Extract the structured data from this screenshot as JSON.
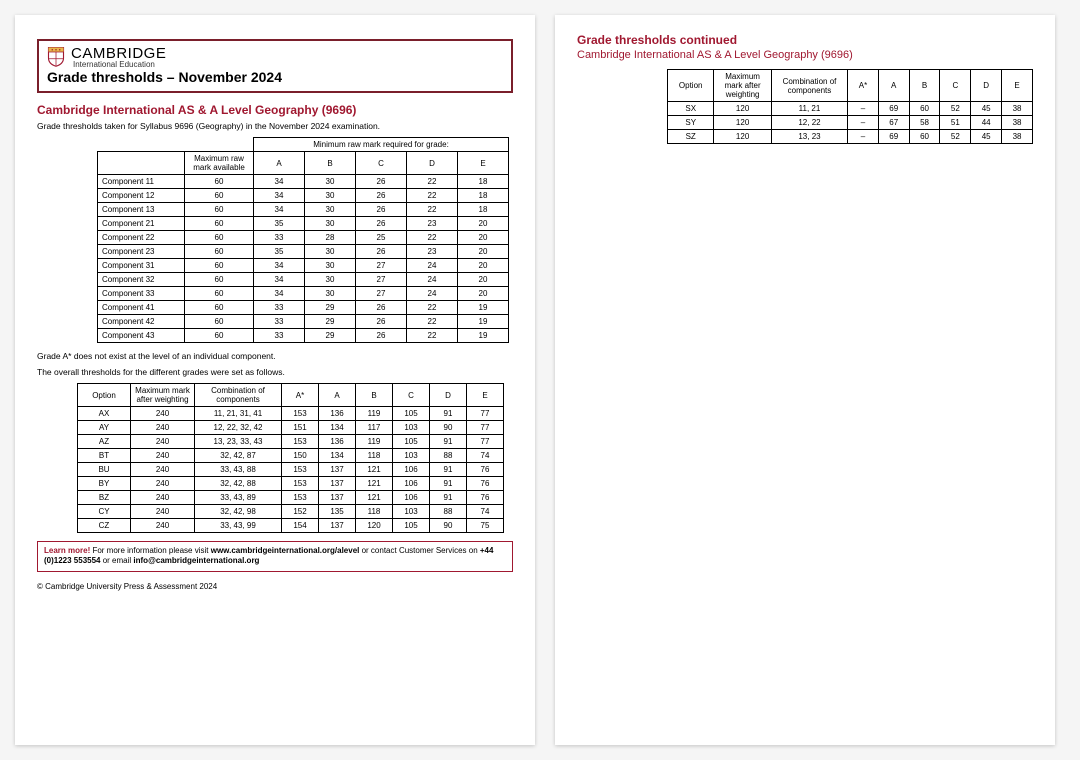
{
  "brand": {
    "name": "CAMBRIDGE",
    "subtitle": "International Education"
  },
  "doc_title": "Grade thresholds – November 2024",
  "syllabus_heading": "Cambridge International AS & A Level Geography (9696)",
  "intro": "Grade thresholds taken for Syllabus 9696 (Geography) in the November 2024 examination.",
  "table1": {
    "span_header": "Minimum raw mark required for grade:",
    "max_header": "Maximum raw mark available",
    "grades": [
      "A",
      "B",
      "C",
      "D",
      "E"
    ],
    "rows": [
      {
        "c": "Component 11",
        "m": "60",
        "v": [
          "34",
          "30",
          "26",
          "22",
          "18"
        ]
      },
      {
        "c": "Component 12",
        "m": "60",
        "v": [
          "34",
          "30",
          "26",
          "22",
          "18"
        ]
      },
      {
        "c": "Component 13",
        "m": "60",
        "v": [
          "34",
          "30",
          "26",
          "22",
          "18"
        ]
      },
      {
        "c": "Component 21",
        "m": "60",
        "v": [
          "35",
          "30",
          "26",
          "23",
          "20"
        ]
      },
      {
        "c": "Component 22",
        "m": "60",
        "v": [
          "33",
          "28",
          "25",
          "22",
          "20"
        ]
      },
      {
        "c": "Component 23",
        "m": "60",
        "v": [
          "35",
          "30",
          "26",
          "23",
          "20"
        ]
      },
      {
        "c": "Component 31",
        "m": "60",
        "v": [
          "34",
          "30",
          "27",
          "24",
          "20"
        ]
      },
      {
        "c": "Component 32",
        "m": "60",
        "v": [
          "34",
          "30",
          "27",
          "24",
          "20"
        ]
      },
      {
        "c": "Component 33",
        "m": "60",
        "v": [
          "34",
          "30",
          "27",
          "24",
          "20"
        ]
      },
      {
        "c": "Component 41",
        "m": "60",
        "v": [
          "33",
          "29",
          "26",
          "22",
          "19"
        ]
      },
      {
        "c": "Component 42",
        "m": "60",
        "v": [
          "33",
          "29",
          "26",
          "22",
          "19"
        ]
      },
      {
        "c": "Component 43",
        "m": "60",
        "v": [
          "33",
          "29",
          "26",
          "22",
          "19"
        ]
      }
    ]
  },
  "note1": "Grade A* does not exist at the level of an individual component.",
  "note2": "The overall thresholds for the different grades were set as follows.",
  "table2": {
    "headers": {
      "option": "Option",
      "max": "Maximum mark after weighting",
      "comb": "Combination of components",
      "grades": [
        "A*",
        "A",
        "B",
        "C",
        "D",
        "E"
      ]
    },
    "rows": [
      {
        "o": "AX",
        "m": "240",
        "c": "11, 21, 31, 41",
        "v": [
          "153",
          "136",
          "119",
          "105",
          "91",
          "77"
        ]
      },
      {
        "o": "AY",
        "m": "240",
        "c": "12, 22, 32, 42",
        "v": [
          "151",
          "134",
          "117",
          "103",
          "90",
          "77"
        ]
      },
      {
        "o": "AZ",
        "m": "240",
        "c": "13, 23, 33, 43",
        "v": [
          "153",
          "136",
          "119",
          "105",
          "91",
          "77"
        ]
      },
      {
        "o": "BT",
        "m": "240",
        "c": "32, 42, 87",
        "v": [
          "150",
          "134",
          "118",
          "103",
          "88",
          "74"
        ]
      },
      {
        "o": "BU",
        "m": "240",
        "c": "33, 43, 88",
        "v": [
          "153",
          "137",
          "121",
          "106",
          "91",
          "76"
        ]
      },
      {
        "o": "BY",
        "m": "240",
        "c": "32, 42, 88",
        "v": [
          "153",
          "137",
          "121",
          "106",
          "91",
          "76"
        ]
      },
      {
        "o": "BZ",
        "m": "240",
        "c": "33, 43, 89",
        "v": [
          "153",
          "137",
          "121",
          "106",
          "91",
          "76"
        ]
      },
      {
        "o": "CY",
        "m": "240",
        "c": "32, 42, 98",
        "v": [
          "152",
          "135",
          "118",
          "103",
          "88",
          "74"
        ]
      },
      {
        "o": "CZ",
        "m": "240",
        "c": "33, 43, 99",
        "v": [
          "154",
          "137",
          "120",
          "105",
          "90",
          "75"
        ]
      }
    ]
  },
  "learn": {
    "lead": "Learn more!",
    "text1": " For more information please visit ",
    "url": "www.cambridgeinternational.org/alevel",
    "text2": " or contact Customer Services on ",
    "phone": "+44 (0)1223 553554",
    "text3": " or email ",
    "email": "info@cambridgeinternational.org"
  },
  "copyright": "© Cambridge University Press & Assessment 2024",
  "page2": {
    "heading": "Grade thresholds continued",
    "sub": "Cambridge International AS & A Level Geography (9696)",
    "headers": {
      "option": "Option",
      "max": "Maximum mark after weighting",
      "comb": "Combination of components",
      "grades": [
        "A*",
        "A",
        "B",
        "C",
        "D",
        "E"
      ]
    },
    "rows": [
      {
        "o": "SX",
        "m": "120",
        "c": "11, 21",
        "v": [
          "–",
          "69",
          "60",
          "52",
          "45",
          "38"
        ]
      },
      {
        "o": "SY",
        "m": "120",
        "c": "12, 22",
        "v": [
          "–",
          "67",
          "58",
          "51",
          "44",
          "38"
        ]
      },
      {
        "o": "SZ",
        "m": "120",
        "c": "13, 23",
        "v": [
          "–",
          "69",
          "60",
          "52",
          "45",
          "38"
        ]
      }
    ]
  },
  "colors": {
    "accent": "#a01830",
    "border": "#7a1f2b"
  }
}
